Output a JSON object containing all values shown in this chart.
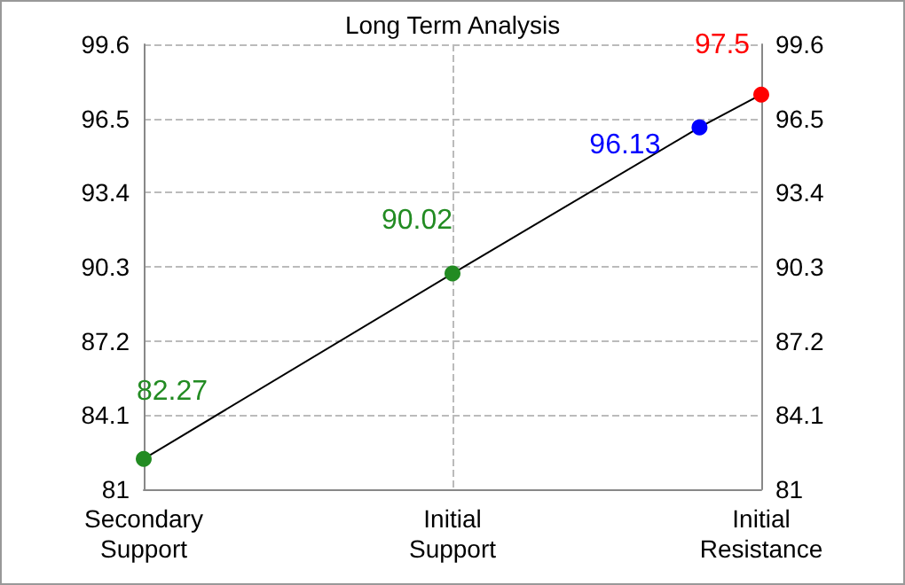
{
  "chart_data": {
    "type": "line",
    "title": "Long Term Analysis",
    "categories": [
      "Secondary Support",
      null,
      null,
      null,
      null,
      "Initial Support",
      null,
      null,
      null,
      null,
      "Initial Resistance"
    ],
    "values": [
      82.27,
      null,
      null,
      null,
      null,
      90.02,
      null,
      null,
      null,
      96.13,
      97.5
    ],
    "colors": [
      "#228b22",
      null,
      null,
      null,
      null,
      "#228b22",
      null,
      null,
      null,
      "#0000ff",
      "#ff0000"
    ],
    "color": "#000000",
    "data_labels": true,
    "marker": "circle",
    "ylim": [
      81,
      99.6
    ],
    "yticks": [
      81,
      84.1,
      87.2,
      90.3,
      93.4,
      96.5,
      99.6
    ],
    "y2lim": [
      81,
      99.6
    ],
    "y2ticks": [
      81,
      84.1,
      87.2,
      90.3,
      93.4,
      96.5,
      99.6
    ],
    "grid": true
  }
}
